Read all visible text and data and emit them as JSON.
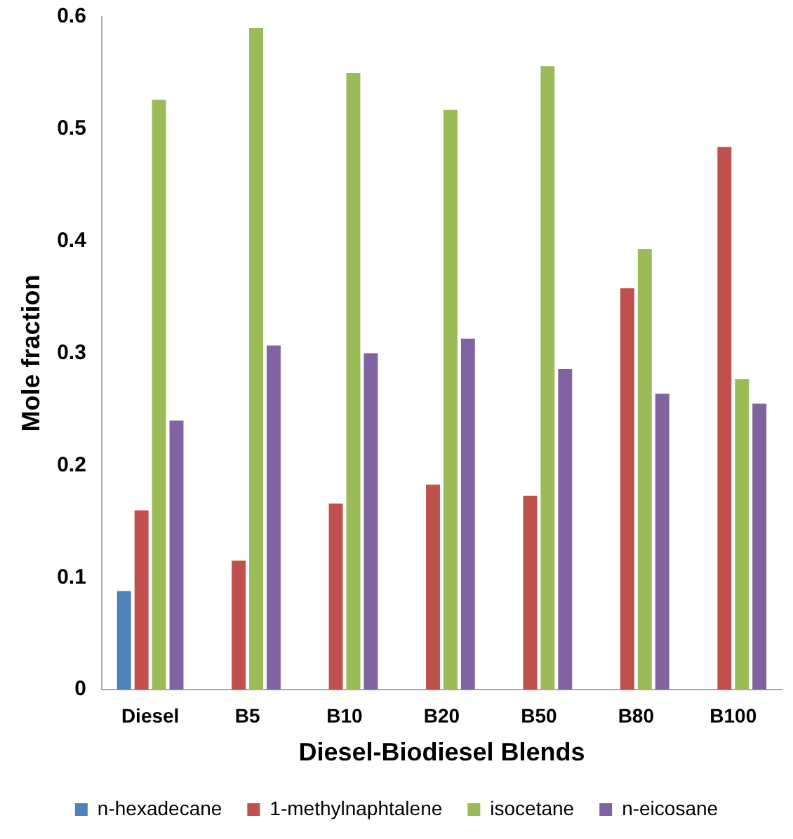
{
  "chart_data": {
    "type": "bar",
    "xlabel": "Diesel-Biodiesel Blends",
    "ylabel": "Mole fraction",
    "categories": [
      "Diesel",
      "B5",
      "B10",
      "B20",
      "B50",
      "B80",
      "B100"
    ],
    "series": [
      {
        "name": "n-hexadecane",
        "color": "#4f81bd",
        "values": [
          0.088,
          0,
          0,
          0,
          0,
          0,
          0
        ]
      },
      {
        "name": "1-methylnaphtalene",
        "color": "#c0504d",
        "values": [
          0.16,
          0.115,
          0.166,
          0.183,
          0.173,
          0.358,
          0.484
        ]
      },
      {
        "name": "isocetane",
        "color": "#9bbb59",
        "values": [
          0.526,
          0.59,
          0.55,
          0.517,
          0.556,
          0.393,
          0.277
        ]
      },
      {
        "name": "n-eicosane",
        "color": "#8064a2",
        "values": [
          0.24,
          0.307,
          0.3,
          0.313,
          0.286,
          0.264,
          0.255
        ]
      }
    ],
    "ylim": [
      0,
      0.6
    ],
    "yticks": [
      0,
      0.1,
      0.2,
      0.3,
      0.4,
      0.5,
      0.6
    ],
    "grid": false,
    "legend": "bottom"
  }
}
